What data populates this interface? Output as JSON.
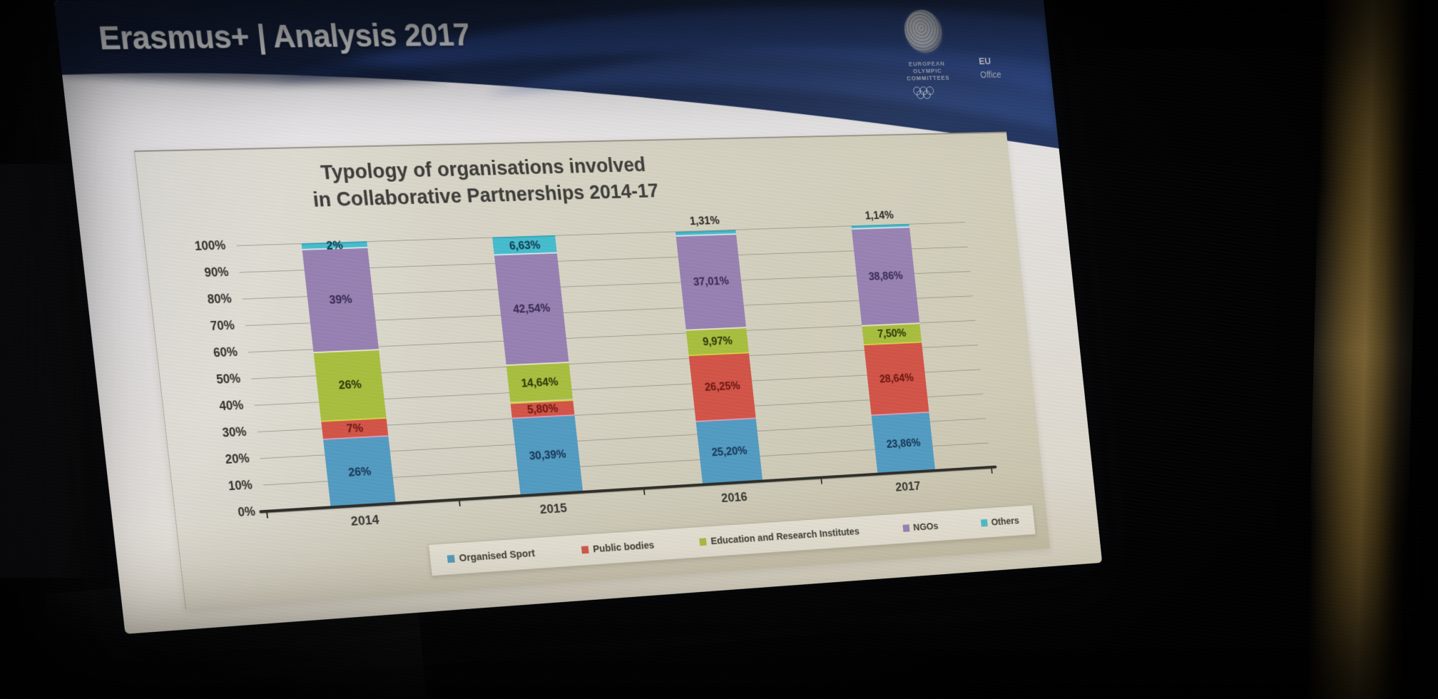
{
  "slide": {
    "header": {
      "title": "Erasmus+ | Analysis 2017"
    },
    "logo": {
      "org": [
        "EUROPEAN",
        "OLYMPIC",
        "COMMITTEES"
      ],
      "eu": "EU",
      "office": "Office"
    }
  },
  "chart_data": {
    "type": "bar",
    "variant": "stacked-100-percent-column",
    "title": "Typology of organisations involved in Collaborative Partnerships 2014-17",
    "title_lines": [
      "Typology of organisations involved",
      "in Collaborative Partnerships 2014-17"
    ],
    "categories": [
      "2014",
      "2015",
      "2016",
      "2017"
    ],
    "series": [
      {
        "name": "Organised Sport",
        "color": "#4d9ec9",
        "label_color": "#14395f",
        "values": [
          26,
          30.39,
          25.2,
          23.86
        ],
        "labels": [
          "26%",
          "30,39%",
          "25,20%",
          "23,86%"
        ]
      },
      {
        "name": "Public bodies",
        "color": "#dd5244",
        "label_color": "#7a150e",
        "values": [
          7,
          5.8,
          26.25,
          28.64
        ],
        "labels": [
          "7%",
          "5,80%",
          "26,25%",
          "28,64%"
        ]
      },
      {
        "name": "Education and Research Institutes",
        "color": "#a9c234",
        "label_color": "#2d3b06",
        "values": [
          26,
          14.64,
          9.97,
          7.5
        ],
        "labels": [
          "26%",
          "14,64%",
          "9,97%",
          "7,50%"
        ]
      },
      {
        "name": "NGOs",
        "color": "#9a81b8",
        "label_color": "#3c2a5c",
        "values": [
          39,
          42.54,
          37.01,
          38.86
        ],
        "labels": [
          "39%",
          "42,54%",
          "37,01%",
          "38,86%"
        ]
      },
      {
        "name": "Others",
        "color": "#3ec1d5",
        "label_color": "#0d3e54",
        "values": [
          2,
          6.63,
          1.31,
          1.14
        ],
        "labels": [
          "2%",
          "6,63%",
          "1,31%",
          "1,14%"
        ]
      }
    ],
    "y_ticks": [
      "100%",
      "90%",
      "80%",
      "70%",
      "60%",
      "50%",
      "40%",
      "30%",
      "20%",
      "10%",
      "0%"
    ],
    "ylim": [
      0,
      100
    ],
    "grid": true,
    "legend_position": "bottom"
  }
}
